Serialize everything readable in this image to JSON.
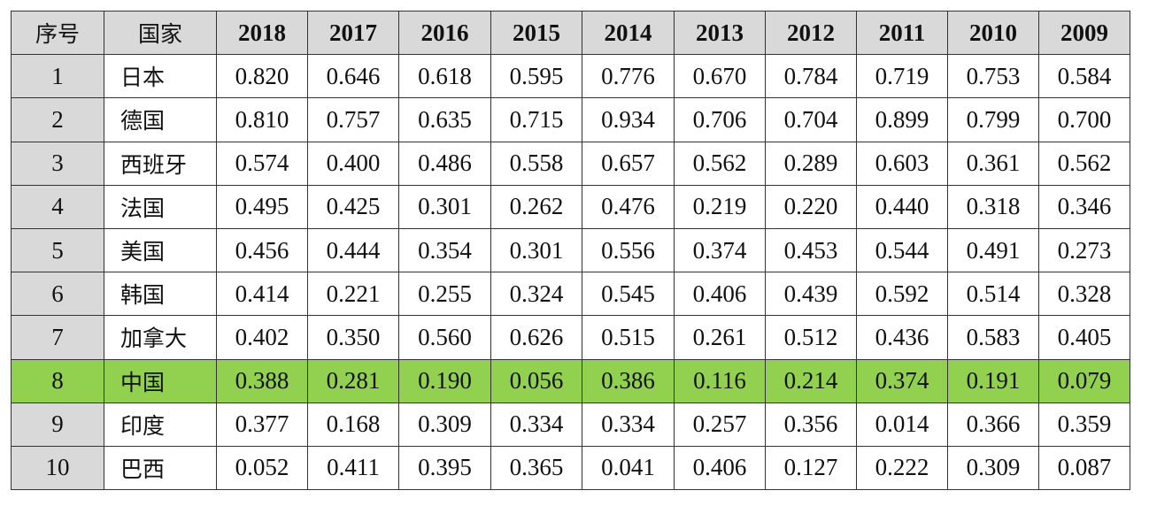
{
  "table": {
    "headers": [
      "序号",
      "国家",
      "2018",
      "2017",
      "2016",
      "2015",
      "2014",
      "2013",
      "2012",
      "2011",
      "2010",
      "2009"
    ],
    "highlight_row_index": 7,
    "highlight_color": "#92d050",
    "header_color": "#d9d9d9",
    "rows": [
      {
        "idx": "1",
        "country": "日本",
        "values": [
          "0.820",
          "0.646",
          "0.618",
          "0.595",
          "0.776",
          "0.670",
          "0.784",
          "0.719",
          "0.753",
          "0.584"
        ]
      },
      {
        "idx": "2",
        "country": "德国",
        "values": [
          "0.810",
          "0.757",
          "0.635",
          "0.715",
          "0.934",
          "0.706",
          "0.704",
          "0.899",
          "0.799",
          "0.700"
        ]
      },
      {
        "idx": "3",
        "country": "西班牙",
        "values": [
          "0.574",
          "0.400",
          "0.486",
          "0.558",
          "0.657",
          "0.562",
          "0.289",
          "0.603",
          "0.361",
          "0.562"
        ]
      },
      {
        "idx": "4",
        "country": "法国",
        "values": [
          "0.495",
          "0.425",
          "0.301",
          "0.262",
          "0.476",
          "0.219",
          "0.220",
          "0.440",
          "0.318",
          "0.346"
        ]
      },
      {
        "idx": "5",
        "country": "美国",
        "values": [
          "0.456",
          "0.444",
          "0.354",
          "0.301",
          "0.556",
          "0.374",
          "0.453",
          "0.544",
          "0.491",
          "0.273"
        ]
      },
      {
        "idx": "6",
        "country": "韩国",
        "values": [
          "0.414",
          "0.221",
          "0.255",
          "0.324",
          "0.545",
          "0.406",
          "0.439",
          "0.592",
          "0.514",
          "0.328"
        ]
      },
      {
        "idx": "7",
        "country": "加拿大",
        "values": [
          "0.402",
          "0.350",
          "0.560",
          "0.626",
          "0.515",
          "0.261",
          "0.512",
          "0.436",
          "0.583",
          "0.405"
        ]
      },
      {
        "idx": "8",
        "country": "中国",
        "values": [
          "0.388",
          "0.281",
          "0.190",
          "0.056",
          "0.386",
          "0.116",
          "0.214",
          "0.374",
          "0.191",
          "0.079"
        ]
      },
      {
        "idx": "9",
        "country": "印度",
        "values": [
          "0.377",
          "0.168",
          "0.309",
          "0.334",
          "0.334",
          "0.257",
          "0.356",
          "0.014",
          "0.366",
          "0.359"
        ]
      },
      {
        "idx": "10",
        "country": "巴西",
        "values": [
          "0.052",
          "0.411",
          "0.395",
          "0.365",
          "0.041",
          "0.406",
          "0.127",
          "0.222",
          "0.309",
          "0.087"
        ]
      }
    ]
  }
}
